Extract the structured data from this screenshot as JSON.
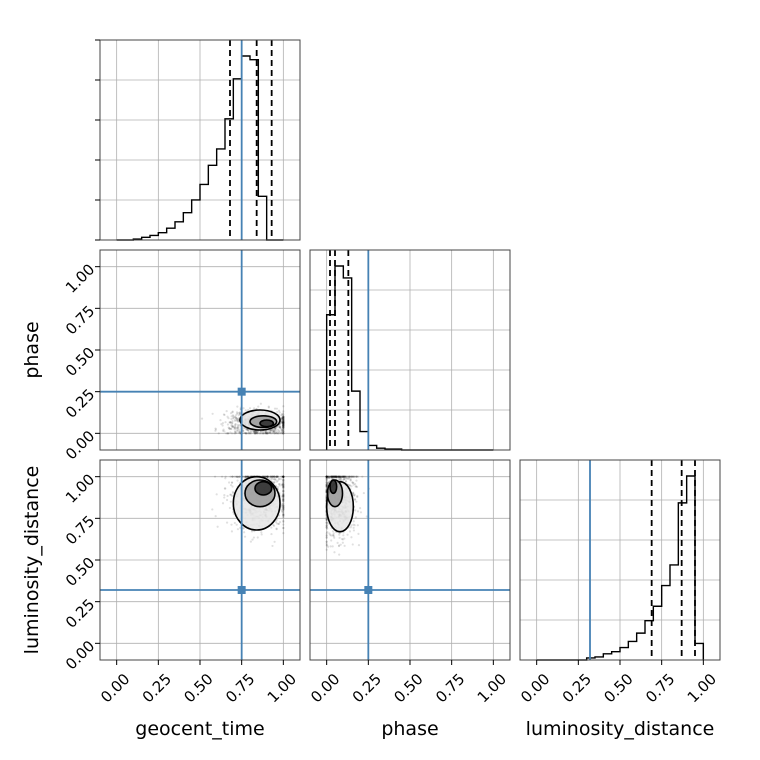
{
  "chart_data": {
    "type": "corner",
    "parameters": [
      "geocent_time",
      "phase",
      "luminosity_distance"
    ],
    "axis_range": [
      -0.1,
      1.1
    ],
    "tick_values": [
      0.0,
      0.25,
      0.5,
      0.75,
      1.0
    ],
    "tick_labels": [
      "0.00",
      "0.25",
      "0.50",
      "0.75",
      "1.00"
    ],
    "grid": true,
    "truths": {
      "geocent_time": 0.75,
      "phase": 0.25,
      "luminosity_distance": 0.32
    },
    "colors": {
      "truth": "#4682b4",
      "hist": "#000000",
      "grid": "#b0b0b0",
      "points": "#000000"
    },
    "quantiles": {
      "geocent_time": [
        0.68,
        0.84,
        0.93
      ],
      "phase": [
        0.02,
        0.05,
        0.13
      ],
      "luminosity_distance": [
        0.69,
        0.87,
        0.95
      ]
    },
    "histograms": [
      {
        "parameter": "geocent_time",
        "bin_start": 0.0,
        "bin_width": 0.05,
        "counts": [
          0,
          0,
          1,
          3,
          5,
          8,
          13,
          20,
          30,
          44,
          61,
          82,
          100,
          133,
          177,
          202,
          198,
          48,
          0,
          0
        ]
      },
      {
        "parameter": "phase",
        "bin_start": 0.0,
        "bin_width": 0.05,
        "counts": [
          147,
          200,
          187,
          64,
          20,
          5,
          2,
          1,
          1,
          0,
          0,
          0,
          0,
          0,
          0,
          0,
          0,
          0,
          0,
          0
        ]
      },
      {
        "parameter": "luminosity_distance",
        "bin_start": 0.0,
        "bin_width": 0.05,
        "counts": [
          0,
          0,
          0,
          0,
          0,
          0,
          2,
          3,
          6,
          8,
          12,
          18,
          26,
          38,
          52,
          72,
          92,
          152,
          178,
          16
        ]
      }
    ],
    "joint": [
      {
        "x": "geocent_time",
        "y": "phase",
        "x_mean": 0.86,
        "x_spread": 0.1,
        "y_mean": 0.06,
        "y_spread": 0.04,
        "contours": [
          {
            "cx": 0.86,
            "cy": 0.08,
            "rx": 0.12,
            "ry": 0.06
          },
          {
            "cx": 0.88,
            "cy": 0.07,
            "rx": 0.08,
            "ry": 0.035
          },
          {
            "cx": 0.9,
            "cy": 0.06,
            "rx": 0.04,
            "ry": 0.02
          }
        ]
      },
      {
        "x": "geocent_time",
        "y": "luminosity_distance",
        "x_mean": 0.87,
        "x_spread": 0.1,
        "y_mean": 0.9,
        "y_spread": 0.1,
        "contours": [
          {
            "cx": 0.84,
            "cy": 0.84,
            "rx": 0.14,
            "ry": 0.16
          },
          {
            "cx": 0.86,
            "cy": 0.9,
            "rx": 0.09,
            "ry": 0.08
          },
          {
            "cx": 0.88,
            "cy": 0.93,
            "rx": 0.05,
            "ry": 0.04
          }
        ]
      },
      {
        "x": "phase",
        "y": "luminosity_distance",
        "x_mean": 0.06,
        "x_spread": 0.06,
        "y_mean": 0.88,
        "y_spread": 0.12,
        "contours": [
          {
            "cx": 0.08,
            "cy": 0.82,
            "rx": 0.08,
            "ry": 0.15
          },
          {
            "cx": 0.05,
            "cy": 0.9,
            "rx": 0.045,
            "ry": 0.08
          },
          {
            "cx": 0.04,
            "cy": 0.94,
            "rx": 0.02,
            "ry": 0.04
          }
        ]
      }
    ]
  }
}
